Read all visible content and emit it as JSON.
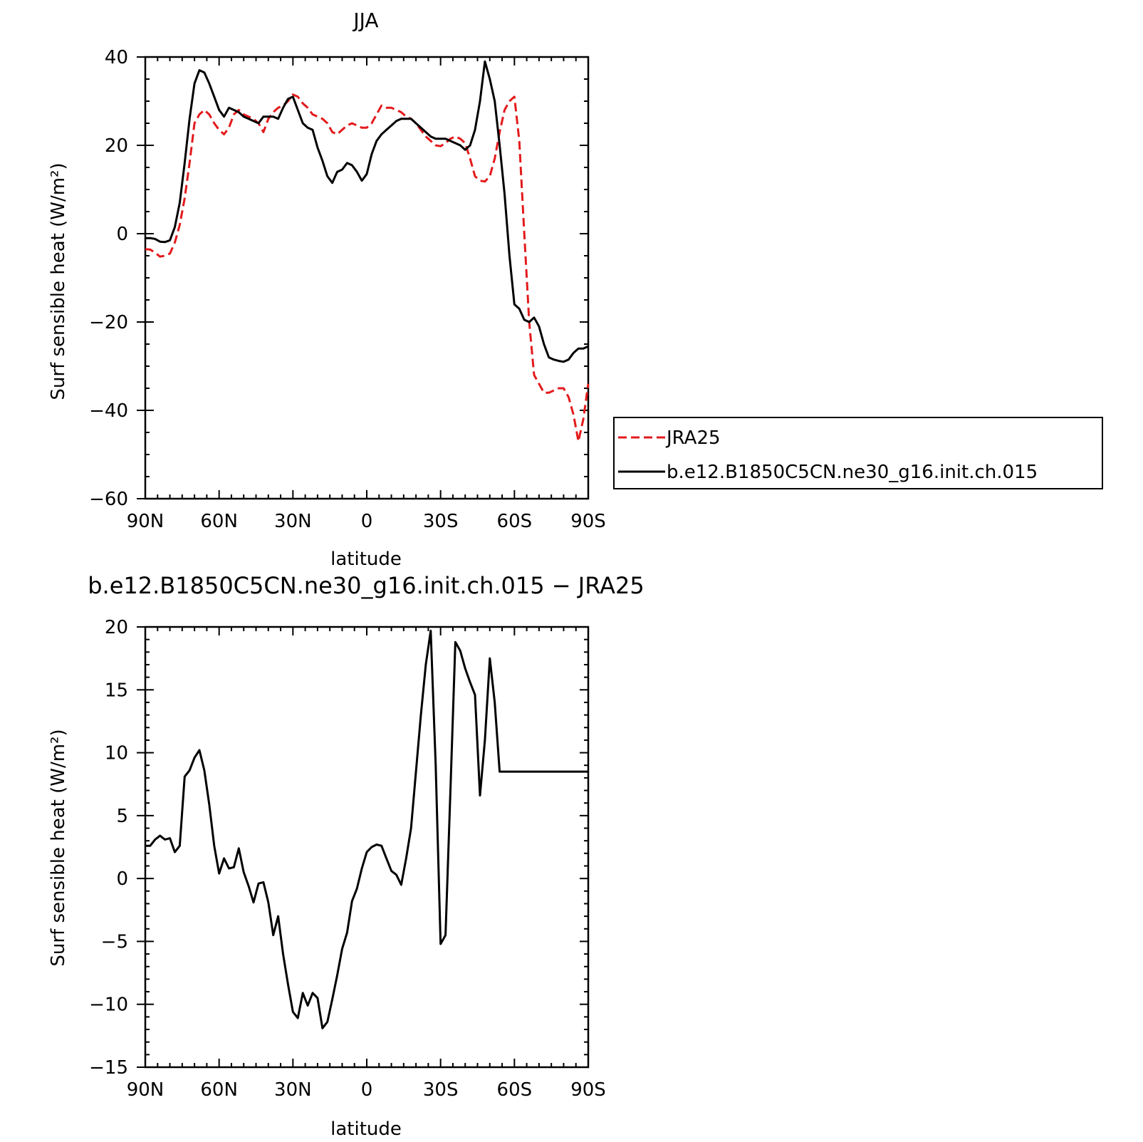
{
  "chart_data": [
    {
      "type": "line",
      "title": "JJA",
      "xlabel": "latitude",
      "ylabel": "Surf sensible heat (W/m²)",
      "xlim": [
        90,
        -90
      ],
      "ylim": [
        -60,
        40
      ],
      "xticks": [
        90,
        60,
        30,
        0,
        -30,
        -60,
        -90
      ],
      "xtick_labels": [
        "90N",
        "60N",
        "30N",
        "0",
        "30S",
        "60S",
        "90S"
      ],
      "yticks": [
        -60,
        -40,
        -20,
        0,
        20,
        40
      ],
      "ytick_labels": [
        "−60",
        "−40",
        "−20",
        "0",
        "20",
        "40"
      ],
      "legend_position": "right",
      "grid": false,
      "series": [
        {
          "name": "JRA25",
          "color": "#e31a1c",
          "dash": "dashed",
          "x": [
            90,
            88,
            86,
            84,
            82,
            80,
            78,
            76,
            74,
            72,
            70,
            68,
            66,
            64,
            62,
            60,
            58,
            56,
            54,
            52,
            50,
            48,
            46,
            44,
            42,
            40,
            38,
            36,
            34,
            32,
            30,
            28,
            26,
            24,
            22,
            20,
            18,
            16,
            14,
            12,
            10,
            8,
            6,
            4,
            2,
            0,
            -2,
            -4,
            -6,
            -8,
            -10,
            -12,
            -14,
            -16,
            -18,
            -20,
            -22,
            -24,
            -26,
            -28,
            -30,
            -32,
            -34,
            -36,
            -38,
            -40,
            -42,
            -44,
            -46,
            -48,
            -50,
            -52,
            -54,
            -56,
            -58,
            -60,
            -62,
            -64,
            -66,
            -68,
            -70,
            -72,
            -74,
            -76,
            -78,
            -80,
            -82,
            -84,
            -86,
            -88,
            -90
          ],
          "values": [
            -3.5,
            -3.6,
            -4.3,
            -5.2,
            -5.0,
            -4.5,
            -2.0,
            2.0,
            8.0,
            16.0,
            25.0,
            27.0,
            28.0,
            27.0,
            25.0,
            23.5,
            22.5,
            24.0,
            27.0,
            28.0,
            27.0,
            26.5,
            26.0,
            25.0,
            23.0,
            26.0,
            27.5,
            28.5,
            29.0,
            30.0,
            31.5,
            31.0,
            29.5,
            28.5,
            27.0,
            26.5,
            26.0,
            25.0,
            23.0,
            22.5,
            23.5,
            24.5,
            25.0,
            24.5,
            24.0,
            24.0,
            25.0,
            27.0,
            29.0,
            28.5,
            28.5,
            28.0,
            27.5,
            26.5,
            26.0,
            25.0,
            23.5,
            22.0,
            21.0,
            20.0,
            19.8,
            20.5,
            21.5,
            22.0,
            21.5,
            20.5,
            17.0,
            13.0,
            12.0,
            11.8,
            13.0,
            17.0,
            23.0,
            28.0,
            30.0,
            31.0,
            21.0,
            0.0,
            -20.0,
            -32.0,
            -34.0,
            -36.0,
            -36.0,
            -35.5,
            -35.0,
            -35.0,
            -37.0,
            -41.0,
            -47.0,
            -42.0,
            -34.0
          ]
        },
        {
          "name": "b.e12.B1850C5CN.ne30_g16.init.ch.015",
          "color": "#000000",
          "dash": "solid",
          "x": [
            90,
            88,
            86,
            84,
            82,
            80,
            78,
            76,
            74,
            72,
            70,
            68,
            66,
            64,
            62,
            60,
            58,
            56,
            54,
            52,
            50,
            48,
            46,
            44,
            42,
            40,
            38,
            36,
            34,
            32,
            30,
            28,
            26,
            24,
            22,
            20,
            18,
            16,
            14,
            12,
            10,
            8,
            6,
            4,
            2,
            0,
            -2,
            -4,
            -6,
            -8,
            -10,
            -12,
            -14,
            -16,
            -18,
            -20,
            -22,
            -24,
            -26,
            -28,
            -30,
            -32,
            -34,
            -36,
            -38,
            -40,
            -42,
            -44,
            -46,
            -48,
            -50,
            -52,
            -54,
            -56,
            -58,
            -60,
            -62,
            -64,
            -66,
            -68,
            -70,
            -72,
            -74,
            -76,
            -78,
            -80,
            -82,
            -84,
            -86,
            -88,
            -90
          ],
          "values": [
            -1.0,
            -1.0,
            -1.2,
            -1.8,
            -1.9,
            -1.5,
            1.5,
            7.0,
            16.0,
            26.0,
            34.0,
            37.0,
            36.5,
            34.0,
            31.0,
            28.0,
            26.5,
            28.5,
            28.0,
            27.5,
            26.5,
            26.0,
            25.5,
            25.0,
            26.5,
            26.5,
            26.5,
            26.0,
            28.5,
            30.5,
            31.0,
            28.0,
            25.0,
            24.0,
            23.5,
            19.5,
            16.5,
            13.0,
            11.5,
            14.0,
            14.5,
            16.0,
            15.5,
            14.0,
            12.0,
            13.5,
            18.0,
            21.0,
            22.5,
            23.5,
            24.5,
            25.5,
            26.0,
            26.0,
            26.0,
            25.0,
            24.0,
            23.0,
            22.0,
            21.5,
            21.5,
            21.5,
            21.0,
            20.5,
            20.0,
            19.0,
            20.0,
            23.5,
            30.0,
            39.0,
            35.0,
            30.0,
            20.0,
            9.0,
            -5.0,
            -16.0,
            -17.0,
            -19.5,
            -20.0,
            -19.0,
            -21.0,
            -25.0,
            -28.0,
            -28.5,
            -28.8,
            -29.0,
            -28.5,
            -27.0,
            -26.0,
            -26.0,
            -25.5
          ]
        }
      ]
    },
    {
      "type": "line",
      "title": "b.e12.B1850C5CN.ne30_g16.init.ch.015 − JRA25",
      "xlabel": "latitude",
      "ylabel": "Surf sensible heat (W/m²)",
      "xlim": [
        90,
        -90
      ],
      "ylim": [
        -15,
        20
      ],
      "xticks": [
        90,
        60,
        30,
        0,
        -30,
        -60,
        -90
      ],
      "xtick_labels": [
        "90N",
        "60N",
        "30N",
        "0",
        "30S",
        "60S",
        "90S"
      ],
      "yticks": [
        -15,
        -10,
        -5,
        0,
        5,
        10,
        15,
        20
      ],
      "ytick_labels": [
        "−15",
        "−10",
        "−5",
        "0",
        "5",
        "10",
        "15",
        "20"
      ],
      "grid": false,
      "series": [
        {
          "color": "#000000",
          "dash": "solid",
          "x": [
            90,
            88,
            86,
            84,
            82,
            80,
            78,
            76,
            74,
            72,
            70,
            68,
            66,
            64,
            62,
            60,
            58,
            56,
            54,
            52,
            50,
            48,
            46,
            44,
            42,
            40,
            38,
            36,
            34,
            32,
            30,
            28,
            26,
            24,
            22,
            20,
            18,
            16,
            14,
            12,
            10,
            8,
            6,
            4,
            2,
            0,
            -2,
            -4,
            -6,
            -8,
            -10,
            -12,
            -14,
            -16,
            -18,
            -20,
            -22,
            -24,
            -26,
            -28,
            -30,
            -32,
            -34,
            -36,
            -38,
            -40,
            -42,
            -44,
            -46,
            -48,
            -50,
            -52,
            -54,
            -56,
            -58,
            -60,
            -62,
            -64,
            -66,
            -68,
            -70,
            -72,
            -74,
            -76,
            -78,
            -80,
            -82,
            -84,
            -86,
            -88,
            -90
          ],
          "values": [
            2.6,
            2.6,
            3.1,
            3.4,
            3.1,
            3.2,
            2.1,
            2.6,
            8.1,
            8.6,
            9.6,
            10.2,
            8.6,
            5.9,
            2.6,
            0.4,
            1.6,
            0.8,
            0.9,
            2.4,
            0.5,
            -0.6,
            -1.9,
            -0.4,
            -0.3,
            -1.9,
            -4.5,
            -3.0,
            -6.0,
            -8.4,
            -10.6,
            -11.1,
            -9.1,
            -10.1,
            -9.1,
            -9.5,
            -11.9,
            -11.4,
            -9.6,
            -7.7,
            -5.6,
            -4.3,
            -1.8,
            -0.8,
            0.8,
            2.1,
            2.5,
            2.7,
            2.6,
            1.6,
            0.6,
            0.3,
            -0.5,
            1.6,
            4.0,
            8.5,
            13.0,
            17.0,
            19.7,
            9.0,
            -5.2,
            -4.5,
            7.0,
            18.8,
            18.1,
            16.7,
            15.6,
            14.6,
            6.6,
            11.0,
            17.5,
            14.0,
            8.5,
            8.5,
            8.5,
            8.5,
            8.5,
            8.5,
            8.5,
            8.5,
            8.5,
            8.5,
            8.5,
            8.5,
            8.5,
            8.5,
            8.5,
            8.5,
            8.5,
            8.5,
            8.5
          ]
        }
      ]
    }
  ]
}
